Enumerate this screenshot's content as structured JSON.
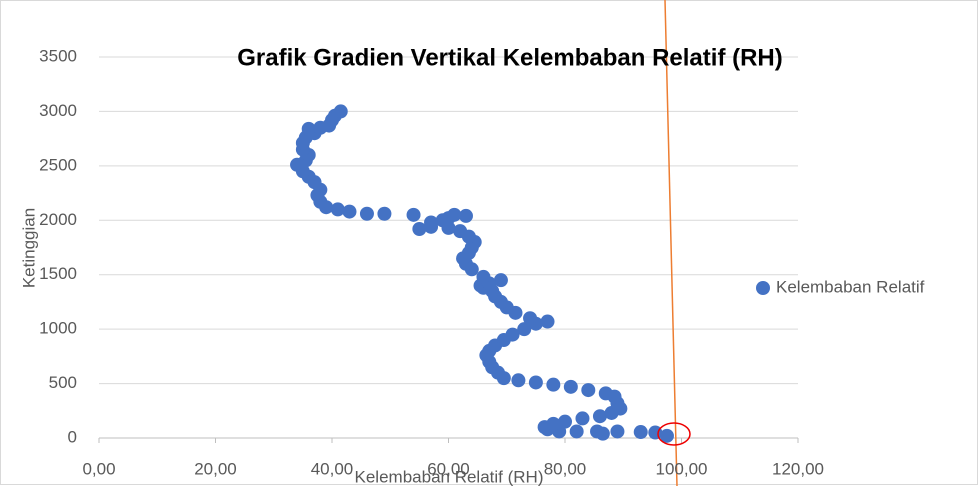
{
  "chart_data": {
    "type": "scatter",
    "title": "Grafik Gradien Vertikal Kelembaban Relatif (RH)",
    "x_label": "Kelembaban Relatif (RH)",
    "y_label": "Ketinggian",
    "legend": "right",
    "grid": true,
    "xlim": [
      0,
      120
    ],
    "xticks": [
      {
        "value": 0,
        "label": "0,00"
      },
      {
        "value": 20,
        "label": "20,00"
      },
      {
        "value": 40,
        "label": "40,00"
      },
      {
        "value": 60,
        "label": "60,00"
      },
      {
        "value": 80,
        "label": "80,00"
      },
      {
        "value": 100,
        "label": "100,00"
      },
      {
        "value": 120,
        "label": "120,00"
      }
    ],
    "ylim": [
      0,
      3500
    ],
    "yticks": [
      0,
      500,
      1000,
      1500,
      2000,
      2500,
      3000,
      3500
    ],
    "series": [
      {
        "name": "Kelembaban Relatif",
        "color": "#4472c4",
        "x": [
          97.5,
          95.5,
          93,
          89,
          86.5,
          85.5,
          82,
          79,
          77,
          76.5,
          78,
          80,
          83,
          86,
          88,
          89.5,
          89,
          88.5,
          87,
          84,
          81,
          78,
          75,
          72,
          69.5,
          68.5,
          67.5,
          67,
          66.5,
          67,
          68,
          69.5,
          71,
          73,
          75,
          77,
          74,
          71.5,
          70,
          69,
          68,
          67.5,
          66,
          65.5,
          67,
          69,
          66,
          64,
          63,
          62.5,
          63.5,
          64,
          64.5,
          63.5,
          62,
          60,
          57,
          55,
          57,
          60,
          63,
          61,
          59,
          54,
          49,
          46,
          43,
          41,
          39,
          38,
          37.5,
          38,
          37,
          36,
          35,
          34,
          35.5,
          36,
          35,
          35,
          35.5,
          37,
          36,
          38,
          39.5,
          40,
          40.5,
          41.5
        ],
        "values": [
          20,
          50,
          55,
          60,
          40,
          60,
          60,
          60,
          80,
          100,
          130,
          150,
          180,
          200,
          230,
          270,
          320,
          380,
          410,
          440,
          470,
          490,
          510,
          530,
          550,
          600,
          650,
          700,
          760,
          800,
          850,
          900,
          950,
          1000,
          1050,
          1070,
          1100,
          1150,
          1200,
          1250,
          1300,
          1350,
          1380,
          1400,
          1420,
          1450,
          1480,
          1550,
          1600,
          1650,
          1700,
          1750,
          1800,
          1850,
          1900,
          1930,
          1940,
          1920,
          1980,
          2020,
          2040,
          2050,
          2000,
          2050,
          2060,
          2060,
          2080,
          2100,
          2120,
          2170,
          2230,
          2280,
          2350,
          2400,
          2450,
          2510,
          2550,
          2600,
          2650,
          2710,
          2760,
          2800,
          2840,
          2850,
          2870,
          2920,
          2960,
          3000
        ]
      }
    ]
  }
}
